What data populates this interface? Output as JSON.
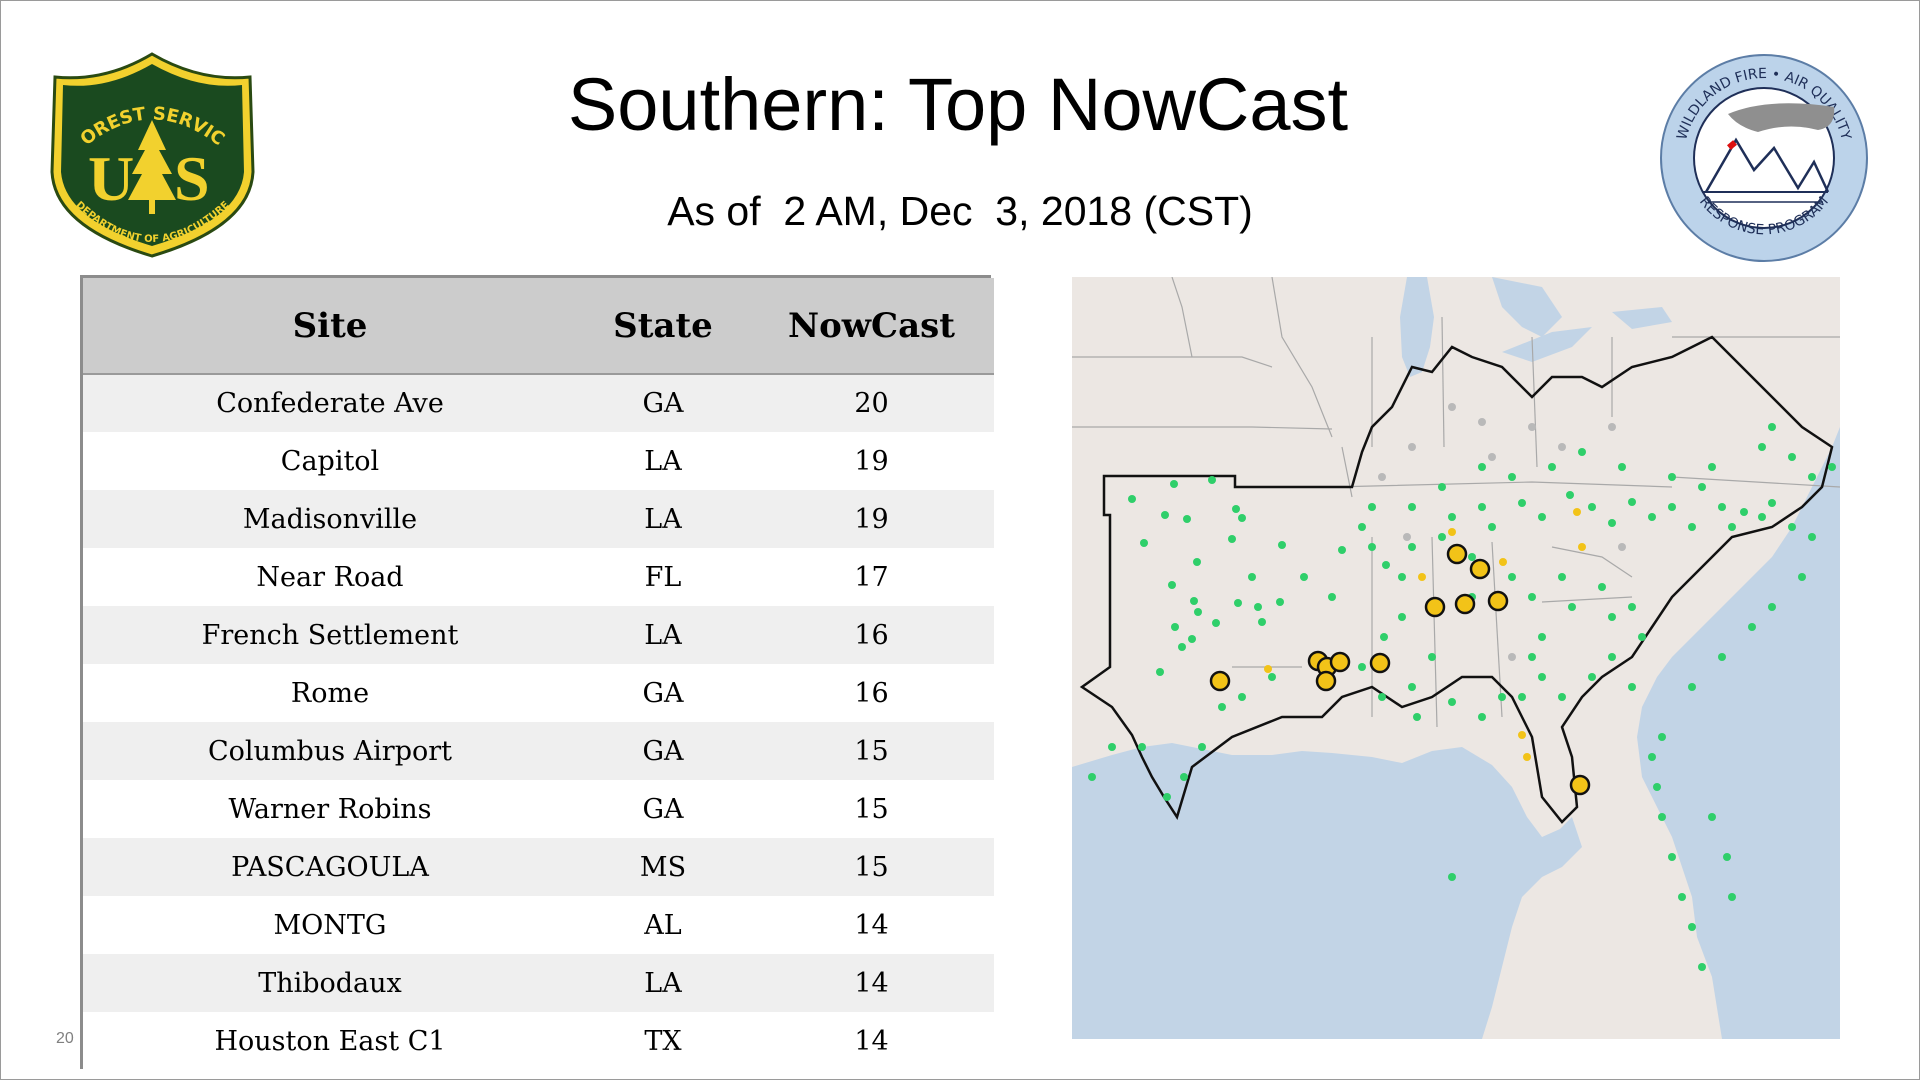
{
  "header": {
    "title": "Southern: Top NowCast",
    "subtitle": "As of  2 AM, Dec  3, 2018 (CST)",
    "page_number": "20"
  },
  "logos": {
    "forest_service": {
      "top_text": "FOREST SERVICE",
      "letters": "U S",
      "bottom_text": "DEPARTMENT OF AGRICULTURE",
      "colors": {
        "shield": "#1a4a1f",
        "gold": "#f2d12e"
      }
    },
    "wildland_fire": {
      "top_text": "WILDLAND FIRE • AIR QUALITY",
      "bottom_text": "RESPONSE PROGRAM",
      "colors": {
        "ring": "#bcd3ea"
      }
    }
  },
  "table": {
    "headers": [
      "Site",
      "State",
      "NowCast"
    ],
    "rows": [
      {
        "site": "Confederate Ave",
        "state": "GA",
        "nowcast": "20"
      },
      {
        "site": "Capitol",
        "state": "LA",
        "nowcast": "19"
      },
      {
        "site": "Madisonville",
        "state": "LA",
        "nowcast": "19"
      },
      {
        "site": "Near Road",
        "state": "FL",
        "nowcast": "17"
      },
      {
        "site": "French Settlement",
        "state": "LA",
        "nowcast": "16"
      },
      {
        "site": "Rome",
        "state": "GA",
        "nowcast": "16"
      },
      {
        "site": "Columbus Airport",
        "state": "GA",
        "nowcast": "15"
      },
      {
        "site": "Warner Robins",
        "state": "GA",
        "nowcast": "15"
      },
      {
        "site": "PASCAGOULA",
        "state": "MS",
        "nowcast": "15"
      },
      {
        "site": "MONTG",
        "state": "AL",
        "nowcast": "14"
      },
      {
        "site": "Thibodaux",
        "state": "LA",
        "nowcast": "14"
      },
      {
        "site": "Houston East C1",
        "state": "TX",
        "nowcast": "14"
      }
    ]
  },
  "map": {
    "colors": {
      "land": "#ece7e3",
      "water": "#c2d4e6",
      "region_outline": "#111111",
      "state_lines": "#a9a9a9",
      "good": "#2fcf6a",
      "moderate": "#f2c318",
      "no_data": "#b9b9b9"
    }
  }
}
